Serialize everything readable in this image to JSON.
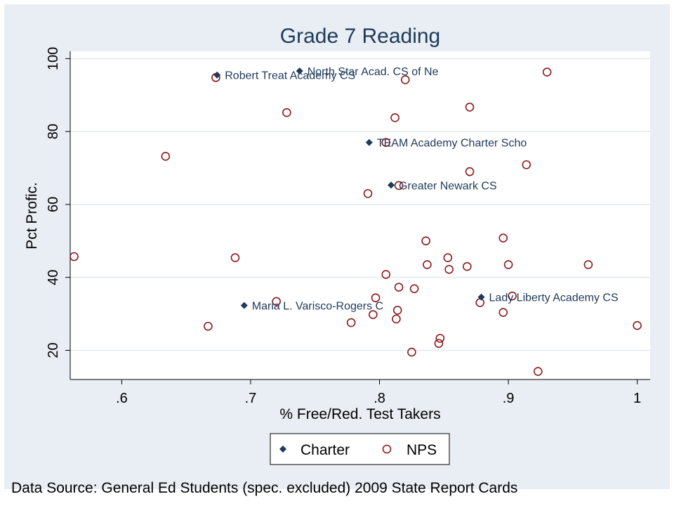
{
  "chart_data": {
    "type": "scatter",
    "title": "Grade 7 Reading",
    "xlabel": "% Free/Red. Test Takers",
    "ylabel": "Pct Profic.",
    "xlim": [
      0.56,
      1.01
    ],
    "ylim": [
      12,
      102
    ],
    "xticks": [
      0.6,
      0.7,
      0.8,
      0.9,
      1
    ],
    "xtick_labels": [
      ".6",
      ".7",
      ".8",
      ".9",
      "1"
    ],
    "yticks": [
      20,
      40,
      60,
      80,
      100
    ],
    "ytick_labels": [
      "20",
      "40",
      "60",
      "80",
      "100"
    ],
    "grid": "horizontal",
    "legend_position": "bottom",
    "colors": {
      "charter": "#1f3a5a",
      "nps": "#8b1a1a",
      "background": "#e8eef3"
    },
    "series": [
      {
        "name": "Charter",
        "marker": "diamond",
        "points": [
          {
            "x": 0.674,
            "y": 95.5,
            "label": "Robert Treat Academy CS"
          },
          {
            "x": 0.738,
            "y": 96.6,
            "label": "North Star Acad. CS of Ne"
          },
          {
            "x": 0.792,
            "y": 77.0,
            "label": "TEAM Academy Charter Scho"
          },
          {
            "x": 0.809,
            "y": 65.3,
            "label": "Greater Newark CS"
          },
          {
            "x": 0.695,
            "y": 32.3,
            "label": "Maria L. Varisco-Rogers C"
          },
          {
            "x": 0.879,
            "y": 34.6,
            "label": "Lady Liberty Academy CS"
          }
        ]
      },
      {
        "name": "NPS",
        "marker": "circle",
        "points": [
          {
            "x": 0.563,
            "y": 45.7
          },
          {
            "x": 0.634,
            "y": 73.2
          },
          {
            "x": 0.667,
            "y": 26.6
          },
          {
            "x": 0.673,
            "y": 94.8
          },
          {
            "x": 0.688,
            "y": 45.4
          },
          {
            "x": 0.72,
            "y": 33.4
          },
          {
            "x": 0.728,
            "y": 85.2
          },
          {
            "x": 0.778,
            "y": 27.6
          },
          {
            "x": 0.791,
            "y": 63.0
          },
          {
            "x": 0.795,
            "y": 29.8
          },
          {
            "x": 0.797,
            "y": 34.4
          },
          {
            "x": 0.805,
            "y": 77.0
          },
          {
            "x": 0.805,
            "y": 40.8
          },
          {
            "x": 0.812,
            "y": 83.8
          },
          {
            "x": 0.813,
            "y": 28.6
          },
          {
            "x": 0.814,
            "y": 31.0
          },
          {
            "x": 0.815,
            "y": 37.3
          },
          {
            "x": 0.815,
            "y": 65.2
          },
          {
            "x": 0.82,
            "y": 94.2
          },
          {
            "x": 0.825,
            "y": 19.5
          },
          {
            "x": 0.827,
            "y": 36.9
          },
          {
            "x": 0.836,
            "y": 50.0
          },
          {
            "x": 0.837,
            "y": 43.5
          },
          {
            "x": 0.846,
            "y": 21.9
          },
          {
            "x": 0.847,
            "y": 23.3
          },
          {
            "x": 0.853,
            "y": 45.4
          },
          {
            "x": 0.854,
            "y": 42.2
          },
          {
            "x": 0.868,
            "y": 43.0
          },
          {
            "x": 0.87,
            "y": 86.7
          },
          {
            "x": 0.87,
            "y": 69.0
          },
          {
            "x": 0.878,
            "y": 33.1
          },
          {
            "x": 0.896,
            "y": 50.8
          },
          {
            "x": 0.896,
            "y": 30.4
          },
          {
            "x": 0.9,
            "y": 43.5
          },
          {
            "x": 0.903,
            "y": 34.9
          },
          {
            "x": 0.914,
            "y": 70.9
          },
          {
            "x": 0.923,
            "y": 14.2
          },
          {
            "x": 0.93,
            "y": 96.3
          },
          {
            "x": 0.962,
            "y": 43.5
          },
          {
            "x": 1.0,
            "y": 26.8
          }
        ]
      }
    ],
    "footnote": "Data Source: General Ed Students (spec. excluded) 2009 State Report Cards"
  }
}
